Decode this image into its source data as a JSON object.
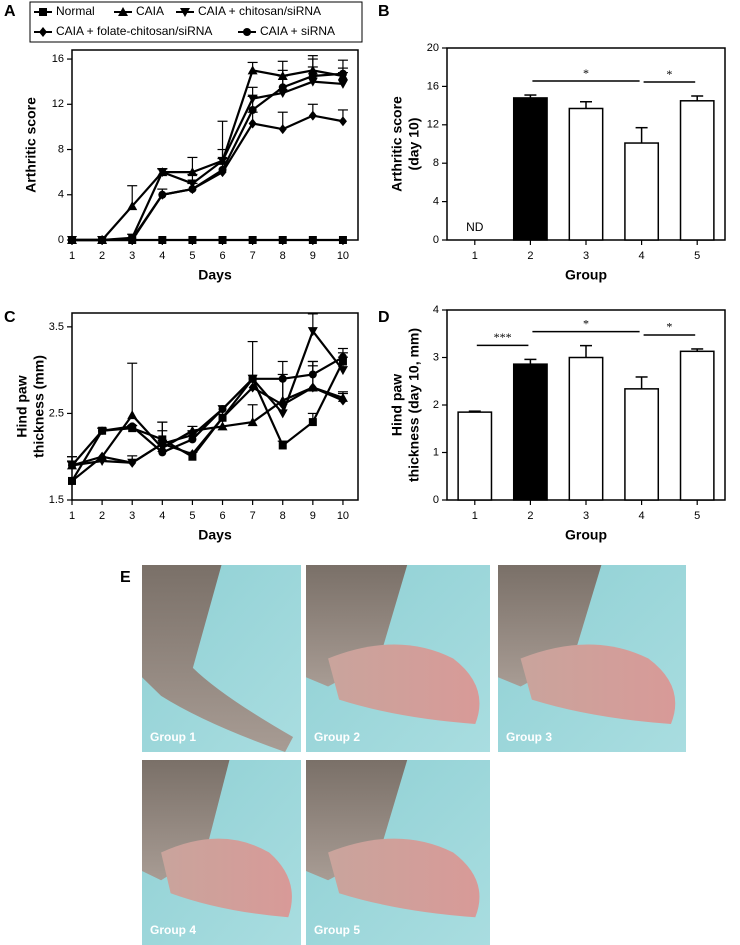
{
  "chart_data": [
    {
      "type": "line",
      "panel_label": "A",
      "xlabel": "Days",
      "ylabel": [
        "Arthritic score"
      ],
      "x": [
        1,
        2,
        3,
        4,
        5,
        6,
        7,
        8,
        9,
        10
      ],
      "xlim": [
        1,
        10.5
      ],
      "xticks": [
        1,
        2,
        3,
        4,
        5,
        6,
        7,
        8,
        9,
        10
      ],
      "ylim": [
        0,
        16.8
      ],
      "yticks": [
        0,
        4,
        8,
        12,
        16
      ],
      "legend": "top",
      "series": [
        {
          "name": "Normal",
          "color": "#000000",
          "marker": "square",
          "values": [
            0,
            0,
            0,
            0,
            0,
            0,
            0,
            0,
            0,
            0
          ],
          "errors": [
            null,
            null,
            null,
            null,
            null,
            null,
            null,
            null,
            null,
            null
          ]
        },
        {
          "name": "CAIA",
          "color": "#000000",
          "marker": "triangle",
          "values": [
            0,
            0,
            3,
            6,
            6,
            7,
            15,
            14.5,
            15,
            14.5
          ],
          "errors": [
            null,
            null,
            1.8,
            0.3,
            1.3,
            1,
            0.7,
            1.3,
            1,
            0.7
          ]
        },
        {
          "name": "CAIA + chitosan/siRNA",
          "color": "#000000",
          "marker": "triangle-down",
          "values": [
            0,
            0,
            0.2,
            6,
            5,
            7,
            12.5,
            13,
            14,
            13.8
          ],
          "errors": [
            null,
            null,
            0.3,
            0.3,
            0.8,
            3.5,
            1,
            1.5,
            1.3,
            1
          ]
        },
        {
          "name": "CAIA + folate-chitosan/siRNA",
          "color": "#000000",
          "marker": "diamond",
          "values": [
            0,
            0,
            0,
            4,
            4.5,
            6,
            10.3,
            9.8,
            11,
            10.5
          ],
          "errors": [
            null,
            null,
            null,
            null,
            0.5,
            0.8,
            1,
            1.5,
            1,
            1
          ]
        },
        {
          "name": "CAIA + siRNA",
          "color": "#000000",
          "marker": "circle",
          "values": [
            0,
            0,
            0.1,
            4,
            4.5,
            6.2,
            11.5,
            13.5,
            14.5,
            14.7
          ],
          "errors": [
            null,
            null,
            null,
            0.5,
            0.5,
            1,
            1.2,
            1.5,
            1.8,
            1.2
          ]
        }
      ]
    },
    {
      "type": "bar",
      "panel_label": "B",
      "xlabel": "Group",
      "ylabel": [
        "Arthritic score",
        "(day 10)"
      ],
      "categories": [
        "1",
        "2",
        "3",
        "4",
        "5"
      ],
      "values": [
        null,
        14.8,
        13.7,
        10.1,
        14.5
      ],
      "value_labels": [
        "ND",
        null,
        null,
        null,
        null
      ],
      "errors": [
        null,
        0.3,
        0.7,
        1.6,
        0.5
      ],
      "colors": [
        "#ffffff",
        "#000000",
        "#ffffff",
        "#ffffff",
        "#ffffff"
      ],
      "ylim": [
        0,
        20
      ],
      "yticks": [
        0,
        4,
        8,
        12,
        16,
        20
      ],
      "brackets": [
        {
          "from": "2",
          "to": "4",
          "text": "*"
        },
        {
          "from": "4",
          "to": "5",
          "text": "*"
        }
      ]
    },
    {
      "type": "line",
      "panel_label": "C",
      "xlabel": "Days",
      "ylabel": [
        "Hind paw",
        "thickness (mm)"
      ],
      "x": [
        1,
        2,
        3,
        4,
        5,
        6,
        7,
        8,
        9,
        10
      ],
      "xlim": [
        1,
        10.5
      ],
      "xticks": [
        1,
        2,
        3,
        4,
        5,
        6,
        7,
        8,
        9,
        10
      ],
      "ylim": [
        1.5,
        3.66
      ],
      "yticks": [
        1.5,
        2.5,
        3.5
      ],
      "series": [
        {
          "color": "#000000",
          "marker": "square",
          "values": [
            1.72,
            2.3,
            2.33,
            2.2,
            2.0,
            2.45,
            2.9,
            2.13,
            2.4,
            3.1
          ],
          "errors": [
            null,
            0.03,
            0.03,
            0.2,
            0.05,
            null,
            null,
            0.05,
            0.1,
            0.05
          ]
        },
        {
          "color": "#000000",
          "marker": "triangle",
          "values": [
            1.9,
            2.0,
            2.48,
            2.1,
            2.3,
            2.35,
            2.4,
            2.65,
            2.8,
            2.68
          ],
          "errors": [
            0.1,
            null,
            0.6,
            0.3,
            0.05,
            null,
            0.2,
            0.3,
            0.3,
            0.05
          ]
        },
        {
          "color": "#000000",
          "marker": "triangle-down",
          "values": [
            1.9,
            1.95,
            1.93,
            2.15,
            2.25,
            2.55,
            2.9,
            2.5,
            3.45,
            3.0
          ],
          "errors": [
            0.05,
            null,
            0.08,
            0.15,
            0.05,
            null,
            0.43,
            0.6,
            0.2,
            0.2
          ]
        },
        {
          "color": "#000000",
          "marker": "diamond",
          "values": [
            1.72,
            2.0,
            1.93,
            2.15,
            2.03,
            2.45,
            2.8,
            2.6,
            2.8,
            2.65
          ],
          "errors": [
            null,
            null,
            null,
            null,
            null,
            null,
            null,
            null,
            0.3,
            0.1
          ]
        },
        {
          "color": "#000000",
          "marker": "circle",
          "values": [
            1.9,
            2.3,
            2.35,
            2.05,
            2.2,
            2.55,
            2.9,
            2.9,
            2.95,
            3.15
          ],
          "errors": [
            0.1,
            null,
            null,
            null,
            null,
            null,
            null,
            null,
            0.1,
            0.1
          ]
        }
      ]
    },
    {
      "type": "bar",
      "panel_label": "D",
      "xlabel": "Group",
      "ylabel": [
        "Hind paw",
        "thickness (day 10, mm)"
      ],
      "categories": [
        "1",
        "2",
        "3",
        "4",
        "5"
      ],
      "values": [
        1.85,
        2.86,
        3.0,
        2.34,
        3.13
      ],
      "errors": [
        0.02,
        0.1,
        0.25,
        0.25,
        0.05
      ],
      "colors": [
        "#ffffff",
        "#000000",
        "#ffffff",
        "#ffffff",
        "#ffffff"
      ],
      "ylim": [
        0,
        4
      ],
      "yticks": [
        0,
        1,
        2,
        3,
        4
      ],
      "brackets": [
        {
          "from": "1",
          "to": "2",
          "text": "***"
        },
        {
          "from": "2",
          "to": "4",
          "text": "*"
        },
        {
          "from": "4",
          "to": "5",
          "text": "*"
        }
      ]
    }
  ],
  "photos": {
    "panel_label": "E",
    "labels": [
      "Group 1",
      "Group 2",
      "Group 3",
      "Group 4",
      "Group 5"
    ]
  }
}
